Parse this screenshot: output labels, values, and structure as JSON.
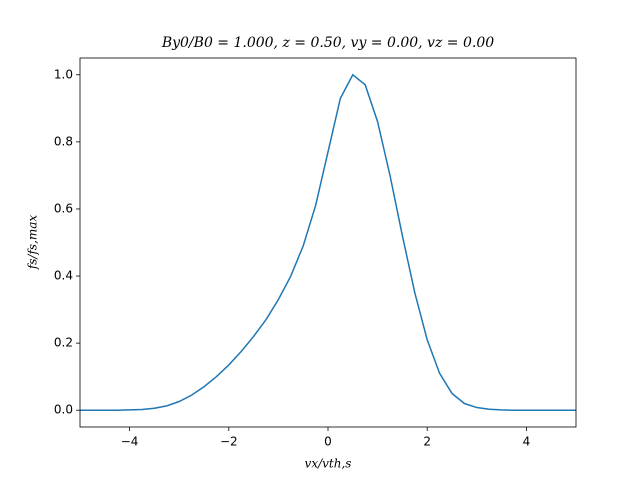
{
  "chart_data": {
    "type": "line",
    "title": "By0/B0 = 1.000, z = 0.50, vy = 0.00, vz = 0.00",
    "x_label": "vx/vth,s",
    "y_label": "fs/fs,max",
    "color": "#1f77b4",
    "x": [
      -5,
      -4.75,
      -4.5,
      -4.25,
      -4,
      -3.75,
      -3.5,
      -3.25,
      -3,
      -2.75,
      -2.5,
      -2.25,
      -2,
      -1.75,
      -1.5,
      -1.25,
      -1,
      -0.75,
      -0.5,
      -0.25,
      0,
      0.25,
      0.5,
      0.75,
      1,
      1.25,
      1.5,
      1.75,
      2,
      2.25,
      2.5,
      2.75,
      3,
      3.25,
      3.5,
      3.75,
      4,
      4.25,
      4.5,
      4.75,
      5
    ],
    "values": [
      0,
      0,
      0,
      0,
      0.001,
      0.002,
      0.006,
      0.013,
      0.026,
      0.045,
      0.07,
      0.1,
      0.135,
      0.175,
      0.22,
      0.27,
      0.33,
      0.4,
      0.49,
      0.61,
      0.77,
      0.93,
      1.0,
      0.97,
      0.86,
      0.7,
      0.52,
      0.35,
      0.21,
      0.11,
      0.05,
      0.02,
      0.008,
      0.003,
      0.001,
      0,
      0,
      0,
      0,
      0,
      0
    ],
    "xlim": [
      -5,
      5
    ],
    "ylim": [
      -0.05,
      1.05
    ],
    "xticks": [
      {
        "value": -4,
        "label": "−4"
      },
      {
        "value": -2,
        "label": "−2"
      },
      0,
      2,
      4
    ],
    "yticks": [
      {
        "value": 0,
        "label": "0.0"
      },
      0.2,
      0.4,
      0.6,
      0.8,
      {
        "value": 1,
        "label": "1.0"
      }
    ]
  }
}
